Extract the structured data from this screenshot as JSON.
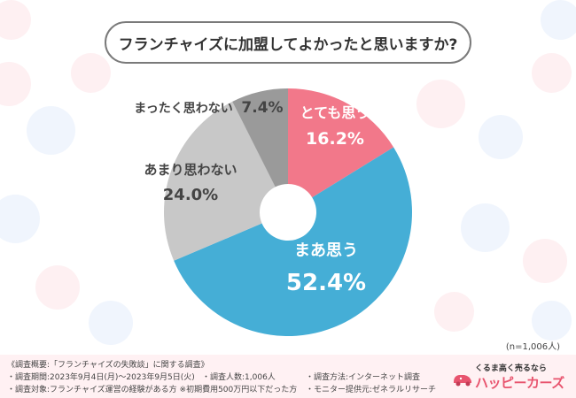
{
  "question": "フランチャイズに加盟してよかったと思いますか?",
  "sample_size": "(n=1,006人)",
  "footer": {
    "summary": "《調査概要:「フランチャイズの失敗談」に関する調査》",
    "period": "・調査期間:2023年9月4日(月)〜2023年9月5日(火)",
    "respondents": "・調査人数:1,006人",
    "method": "・調査方法:インターネット調査",
    "target": "・調査対象:フランチャイズ運営の経験がある方 ※初期費用500万円以下だった方",
    "monitor": "・モニター提供元:ゼネラルリサーチ",
    "brand_tagline": "くるま高く売るなら",
    "brand_name": "ハッピーカーズ"
  },
  "colors": {
    "very_much": "#f2788a",
    "somewhat": "#45aed6",
    "not_really": "#c8c8c8",
    "not_at_all": "#9a9a9a",
    "pink_label": "#ffffff",
    "dark_label": "#444444"
  },
  "chart_data": {
    "type": "pie",
    "title": "フランチャイズに加盟してよかったと思いますか?",
    "donut": true,
    "slices": [
      {
        "label": "とても思う",
        "value": 16.2,
        "display": "16.2%",
        "color": "#f2788a",
        "label_inside": true
      },
      {
        "label": "まあ思う",
        "value": 52.4,
        "display": "52.4%",
        "color": "#45aed6",
        "label_inside": true
      },
      {
        "label": "あまり思わない",
        "value": 24.0,
        "display": "24.0%",
        "color": "#c8c8c8",
        "label_inside": false
      },
      {
        "label": "まったく思わない",
        "value": 7.4,
        "display": "7.4%",
        "color": "#9a9a9a",
        "label_inside": false
      }
    ],
    "start": "top",
    "direction": "clockwise",
    "legend": "none"
  }
}
